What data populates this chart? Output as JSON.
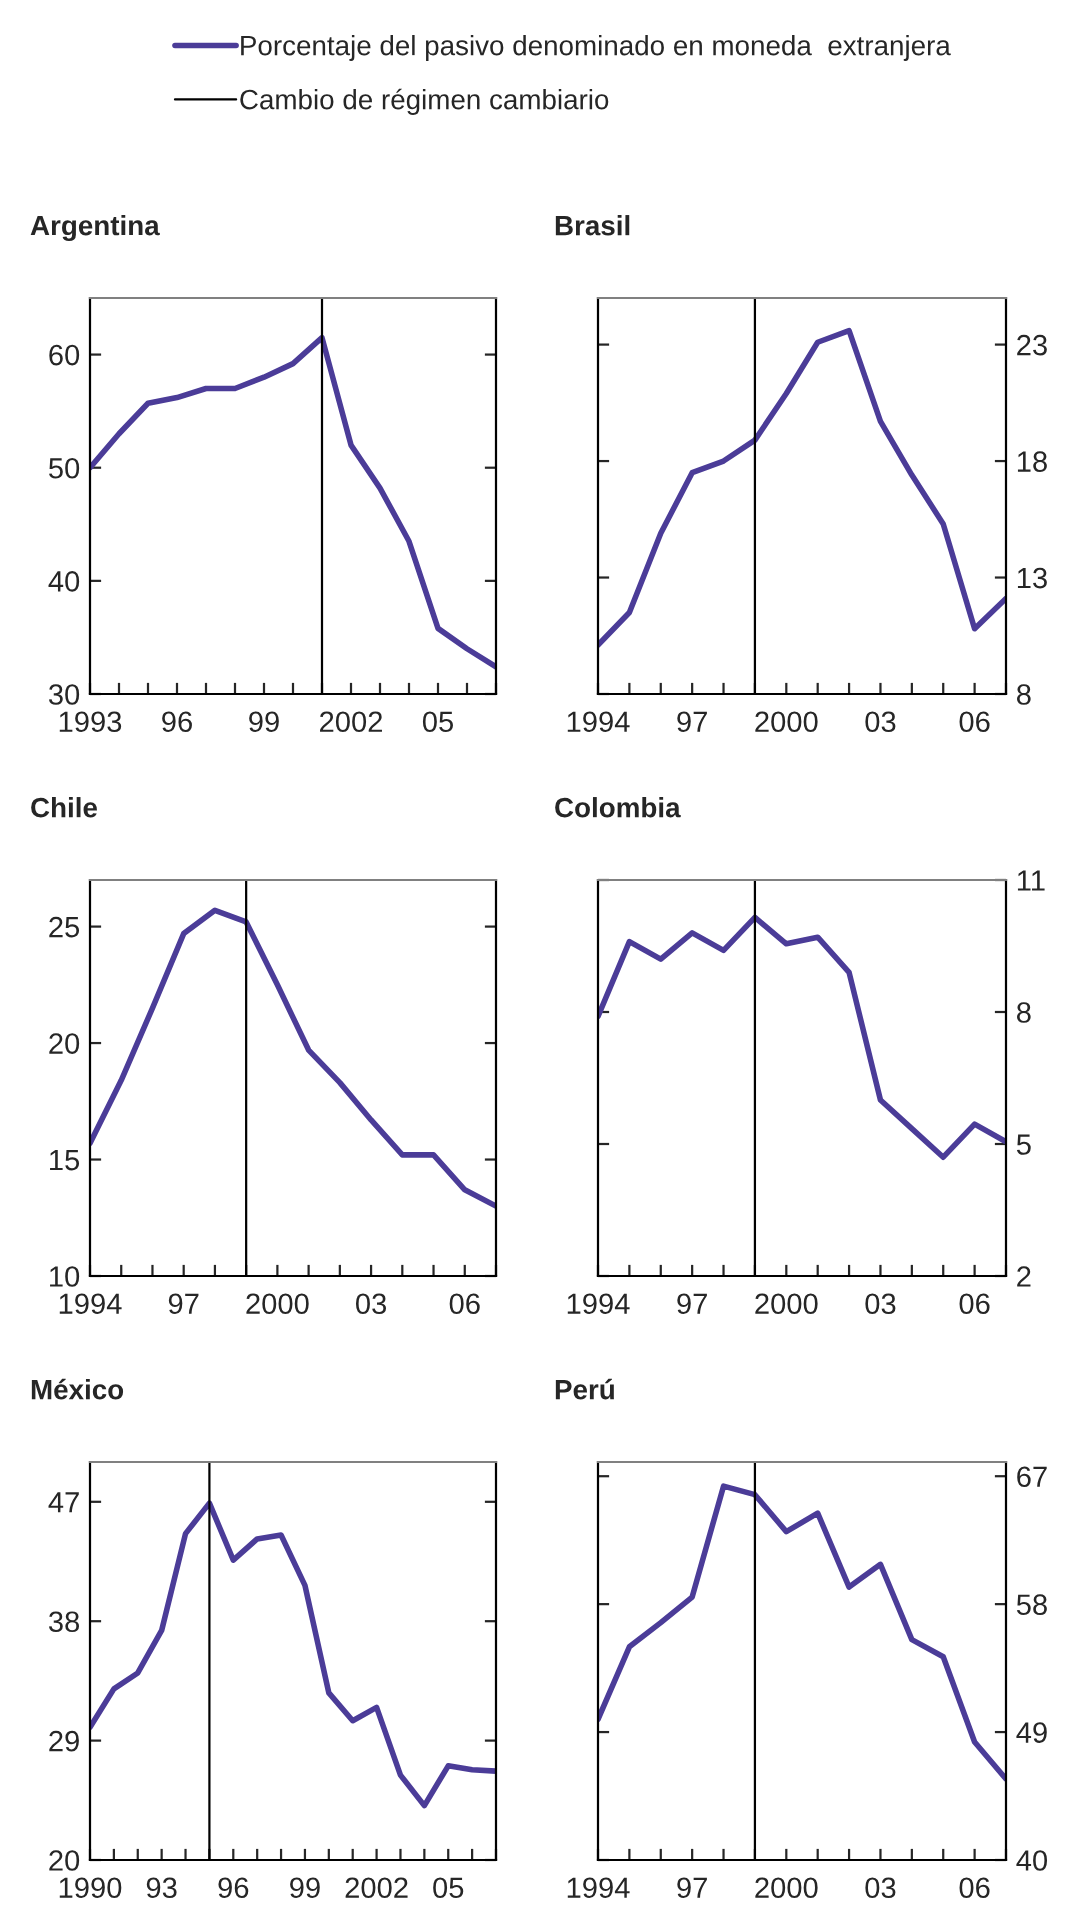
{
  "chart_data": [
    {
      "type": "line",
      "title": "Argentina",
      "x": [
        1993,
        1994,
        1995,
        1996,
        1997,
        1998,
        1999,
        2000,
        2001,
        2002,
        2003,
        2004,
        2005,
        2006,
        2007
      ],
      "xlim": [
        1993,
        2007
      ],
      "xticks": [
        {
          "value": 1993,
          "label": "1993"
        },
        {
          "value": 1994,
          "label": null
        },
        {
          "value": 1995,
          "label": null
        },
        {
          "value": 1996,
          "label": "96"
        },
        {
          "value": 1997,
          "label": null
        },
        {
          "value": 1998,
          "label": null
        },
        {
          "value": 1999,
          "label": "99"
        },
        {
          "value": 2000,
          "label": null
        },
        {
          "value": 2001,
          "label": null
        },
        {
          "value": 2002,
          "label": "2002"
        },
        {
          "value": 2003,
          "label": null
        },
        {
          "value": 2004,
          "label": null
        },
        {
          "value": 2005,
          "label": "05"
        },
        {
          "value": 2006,
          "label": null
        },
        {
          "value": 2007,
          "label": null
        }
      ],
      "ylim": [
        30,
        65
      ],
      "yticks": [
        30,
        40,
        50,
        60
      ],
      "legend": "top",
      "grid": false,
      "series": [
        {
          "name": "Porcentaje del pasivo denominado en moneda  extranjera",
          "color": "#4b3c98",
          "values": [
            50,
            53,
            55.7,
            56.2,
            57,
            57,
            58,
            59.2,
            61.5,
            52,
            48.2,
            43.5,
            35.8,
            34,
            32.4
          ]
        }
      ],
      "ref_lines": [
        {
          "axis": "x",
          "value": 2001,
          "label": "Cambio de régimen cambiario",
          "color": "#000000"
        }
      ]
    },
    {
      "type": "line",
      "title": "Brasil",
      "x": [
        1994,
        1995,
        1996,
        1997,
        1998,
        1999,
        2000,
        2001,
        2002,
        2003,
        2004,
        2005,
        2006,
        2007
      ],
      "xlim": [
        1994,
        2007
      ],
      "xticks": [
        {
          "value": 1994,
          "label": "1994"
        },
        {
          "value": 1995,
          "label": null
        },
        {
          "value": 1996,
          "label": null
        },
        {
          "value": 1997,
          "label": "97"
        },
        {
          "value": 1998,
          "label": null
        },
        {
          "value": 1999,
          "label": null
        },
        {
          "value": 2000,
          "label": "2000"
        },
        {
          "value": 2001,
          "label": null
        },
        {
          "value": 2002,
          "label": null
        },
        {
          "value": 2003,
          "label": "03"
        },
        {
          "value": 2004,
          "label": null
        },
        {
          "value": 2005,
          "label": null
        },
        {
          "value": 2006,
          "label": "06"
        },
        {
          "value": 2007,
          "label": null
        }
      ],
      "ylim": [
        8,
        25
      ],
      "yticks": [
        8,
        13,
        18,
        23
      ],
      "grid": false,
      "series": [
        {
          "color": "#4b3c98",
          "values": [
            10.1,
            11.5,
            14.9,
            17.5,
            18.0,
            18.9,
            20.9,
            23.1,
            23.6,
            19.7,
            17.4,
            15.3,
            10.8,
            12.1
          ]
        }
      ],
      "ref_lines": [
        {
          "axis": "x",
          "value": 1999,
          "color": "#000000"
        }
      ]
    },
    {
      "type": "line",
      "title": "Chile",
      "x": [
        1994,
        1995,
        1996,
        1997,
        1998,
        1999,
        2000,
        2001,
        2002,
        2003,
        2004,
        2005,
        2006,
        2007
      ],
      "xlim": [
        1994,
        2007
      ],
      "xticks": [
        {
          "value": 1994,
          "label": "1994"
        },
        {
          "value": 1995,
          "label": null
        },
        {
          "value": 1996,
          "label": null
        },
        {
          "value": 1997,
          "label": "97"
        },
        {
          "value": 1998,
          "label": null
        },
        {
          "value": 1999,
          "label": null
        },
        {
          "value": 2000,
          "label": "2000"
        },
        {
          "value": 2001,
          "label": null
        },
        {
          "value": 2002,
          "label": null
        },
        {
          "value": 2003,
          "label": "03"
        },
        {
          "value": 2004,
          "label": null
        },
        {
          "value": 2005,
          "label": null
        },
        {
          "value": 2006,
          "label": "06"
        },
        {
          "value": 2007,
          "label": null
        }
      ],
      "ylim": [
        10,
        27
      ],
      "yticks": [
        10,
        15,
        20,
        25
      ],
      "grid": false,
      "series": [
        {
          "color": "#4b3c98",
          "values": [
            15.7,
            18.4,
            21.5,
            24.7,
            25.7,
            25.2,
            22.5,
            19.7,
            18.3,
            16.7,
            15.2,
            15.2,
            13.7,
            13.0
          ]
        }
      ],
      "ref_lines": [
        {
          "axis": "x",
          "value": 1999,
          "color": "#000000"
        }
      ]
    },
    {
      "type": "line",
      "title": "Colombia",
      "x": [
        1994,
        1995,
        1996,
        1997,
        1998,
        1999,
        2000,
        2001,
        2002,
        2003,
        2004,
        2005,
        2006,
        2007
      ],
      "xlim": [
        1994,
        2007
      ],
      "xticks": [
        {
          "value": 1994,
          "label": "1994"
        },
        {
          "value": 1995,
          "label": null
        },
        {
          "value": 1996,
          "label": null
        },
        {
          "value": 1997,
          "label": "97"
        },
        {
          "value": 1998,
          "label": null
        },
        {
          "value": 1999,
          "label": null
        },
        {
          "value": 2000,
          "label": "2000"
        },
        {
          "value": 2001,
          "label": null
        },
        {
          "value": 2002,
          "label": null
        },
        {
          "value": 2003,
          "label": "03"
        },
        {
          "value": 2004,
          "label": null
        },
        {
          "value": 2005,
          "label": null
        },
        {
          "value": 2006,
          "label": "06"
        },
        {
          "value": 2007,
          "label": null
        }
      ],
      "ylim": [
        2,
        11
      ],
      "yticks": [
        2,
        5,
        8,
        11
      ],
      "grid": false,
      "series": [
        {
          "color": "#4b3c98",
          "values": [
            7.9,
            9.6,
            9.2,
            9.8,
            9.4,
            10.15,
            9.55,
            9.7,
            8.9,
            6.0,
            5.35,
            4.7,
            5.45,
            5.05
          ]
        }
      ],
      "ref_lines": [
        {
          "axis": "x",
          "value": 1999,
          "color": "#000000"
        }
      ]
    },
    {
      "type": "line",
      "title": "México",
      "x": [
        1990,
        1991,
        1992,
        1993,
        1994,
        1995,
        1996,
        1997,
        1998,
        1999,
        2000,
        2001,
        2002,
        2003,
        2004,
        2005,
        2006,
        2007
      ],
      "xlim": [
        1990,
        2007
      ],
      "xticks": [
        {
          "value": 1990,
          "label": "1990"
        },
        {
          "value": 1991,
          "label": null
        },
        {
          "value": 1992,
          "label": null
        },
        {
          "value": 1993,
          "label": "93"
        },
        {
          "value": 1994,
          "label": null
        },
        {
          "value": 1995,
          "label": null
        },
        {
          "value": 1996,
          "label": "96"
        },
        {
          "value": 1997,
          "label": null
        },
        {
          "value": 1998,
          "label": null
        },
        {
          "value": 1999,
          "label": "99"
        },
        {
          "value": 2000,
          "label": null
        },
        {
          "value": 2001,
          "label": null
        },
        {
          "value": 2002,
          "label": "2002"
        },
        {
          "value": 2003,
          "label": null
        },
        {
          "value": 2004,
          "label": null
        },
        {
          "value": 2005,
          "label": "05"
        },
        {
          "value": 2006,
          "label": null
        },
        {
          "value": 2007,
          "label": null
        }
      ],
      "ylim": [
        20,
        50
      ],
      "yticks": [
        20,
        29,
        38,
        47
      ],
      "grid": false,
      "series": [
        {
          "color": "#4b3c98",
          "values": [
            30.0,
            32.9,
            34.1,
            37.3,
            44.6,
            46.9,
            42.6,
            44.2,
            44.5,
            40.7,
            32.6,
            30.5,
            31.5,
            26.4,
            24.1,
            27.1,
            26.8,
            26.7
          ]
        }
      ],
      "ref_lines": [
        {
          "axis": "x",
          "value": 1995,
          "color": "#000000"
        }
      ]
    },
    {
      "type": "line",
      "title": "Perú",
      "x": [
        1994,
        1995,
        1996,
        1997,
        1998,
        1999,
        2000,
        2001,
        2002,
        2003,
        2004,
        2005,
        2006,
        2007
      ],
      "xlim": [
        1994,
        2007
      ],
      "xticks": [
        {
          "value": 1994,
          "label": "1994"
        },
        {
          "value": 1995,
          "label": null
        },
        {
          "value": 1996,
          "label": null
        },
        {
          "value": 1997,
          "label": "97"
        },
        {
          "value": 1998,
          "label": null
        },
        {
          "value": 1999,
          "label": null
        },
        {
          "value": 2000,
          "label": "2000"
        },
        {
          "value": 2001,
          "label": null
        },
        {
          "value": 2002,
          "label": null
        },
        {
          "value": 2003,
          "label": "03"
        },
        {
          "value": 2004,
          "label": null
        },
        {
          "value": 2005,
          "label": null
        },
        {
          "value": 2006,
          "label": "06"
        },
        {
          "value": 2007,
          "label": null
        }
      ],
      "ylim": [
        40,
        68
      ],
      "yticks": [
        40,
        49,
        58,
        67
      ],
      "grid": false,
      "series": [
        {
          "color": "#4b3c98",
          "values": [
            49.9,
            55.0,
            56.7,
            58.5,
            66.3,
            65.7,
            63.1,
            64.4,
            59.2,
            60.8,
            55.5,
            54.3,
            48.3,
            45.7
          ]
        }
      ],
      "ref_lines": [
        {
          "axis": "x",
          "value": 1999,
          "color": "#000000"
        }
      ]
    }
  ]
}
